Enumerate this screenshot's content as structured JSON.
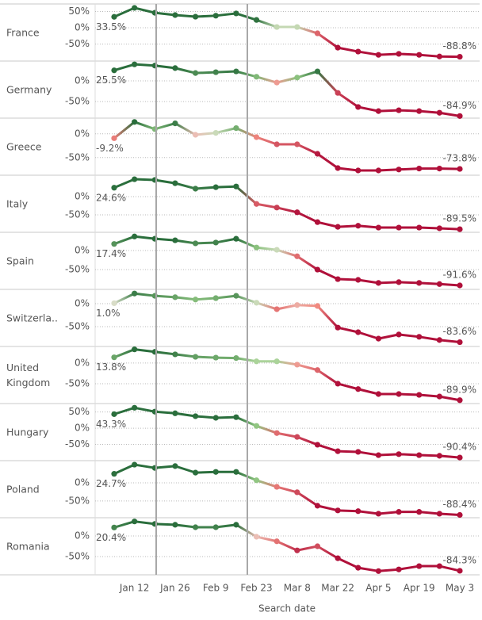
{
  "chart_data": {
    "type": "line",
    "x_label": "Search date",
    "categories": [
      null,
      "Jan 12",
      null,
      "Jan 26",
      null,
      "Feb 9",
      null,
      "Feb 23",
      null,
      "Mar 8",
      null,
      "Mar 22",
      null,
      "Apr 5",
      null,
      "Apr 19",
      null,
      "May 3"
    ],
    "color_scale": {
      "domain": [
        -45,
        -5,
        0,
        5,
        25
      ],
      "range": [
        "#b0103a",
        "#f08a80",
        "#e8e0d8",
        "#9cd08a",
        "#2a6e3c"
      ]
    },
    "panels": [
      {
        "name": "France",
        "values": [
          33.5,
          61,
          46,
          39,
          34,
          37,
          44,
          24,
          2.4,
          2.4,
          -17,
          -61,
          -73,
          -83,
          -80,
          -83,
          -88,
          -88.8
        ],
        "value_labels": [
          "33.5%",
          null,
          null,
          null,
          null,
          null,
          null,
          null,
          null,
          null,
          null,
          null,
          null,
          null,
          null,
          null,
          null,
          "-88.8%"
        ],
        "ylim": [
          -102,
          73
        ],
        "yticks": [
          {
            "value": 50,
            "label": "50%"
          },
          {
            "value": 0,
            "label": "0%"
          },
          {
            "value": -50,
            "label": "-50%"
          }
        ]
      },
      {
        "name": "Germany",
        "values": [
          25.5,
          40,
          37,
          31,
          19,
          21,
          23,
          10,
          -4,
          8,
          23,
          -29,
          -63,
          -73,
          -71,
          -73,
          -77,
          -84.9
        ],
        "value_labels": [
          "25.5%",
          null,
          null,
          null,
          null,
          null,
          null,
          null,
          null,
          null,
          null,
          null,
          null,
          null,
          null,
          null,
          null,
          "-84.9%"
        ],
        "ylim": [
          -90,
          48
        ],
        "yticks": [
          {
            "value": 0,
            "label": "0%"
          },
          {
            "value": -50,
            "label": "-50%"
          }
        ]
      },
      {
        "name": "Greece",
        "values": [
          -9.2,
          25,
          10,
          22,
          -2,
          2,
          12,
          -7,
          -22,
          -22,
          -42,
          -72,
          -77,
          -77,
          -75,
          -73,
          -73,
          -73.8
        ],
        "value_labels": [
          "-9.2%",
          null,
          null,
          null,
          null,
          null,
          null,
          null,
          null,
          null,
          null,
          null,
          null,
          null,
          null,
          null,
          null,
          "-73.8%"
        ],
        "ylim": [
          -87,
          33
        ],
        "yticks": [
          {
            "value": 0,
            "label": "0%"
          },
          {
            "value": -50,
            "label": "-50%"
          }
        ]
      },
      {
        "name": "Italy",
        "values": [
          24.6,
          48,
          46,
          37,
          22,
          26,
          28,
          -20,
          -30,
          -43,
          -70,
          -83,
          -80,
          -85,
          -85,
          -85,
          -87,
          -89.5
        ],
        "value_labels": [
          "24.6%",
          null,
          null,
          null,
          null,
          null,
          null,
          null,
          null,
          null,
          null,
          null,
          null,
          null,
          null,
          null,
          null,
          "-89.5%"
        ],
        "ylim": [
          -98,
          59
        ],
        "yticks": [
          {
            "value": 0,
            "label": "0%"
          },
          {
            "value": -50,
            "label": "-50%"
          }
        ]
      },
      {
        "name": "Spain",
        "values": [
          17.4,
          37,
          31,
          27,
          19,
          21,
          31,
          8,
          2,
          -15,
          -50,
          -75,
          -77,
          -85,
          -83,
          -85,
          -88,
          -91.6
        ],
        "value_labels": [
          "17.4%",
          null,
          null,
          null,
          null,
          null,
          null,
          null,
          null,
          null,
          null,
          null,
          null,
          null,
          null,
          null,
          null,
          "-91.6%"
        ],
        "ylim": [
          -102,
          48
        ],
        "yticks": [
          {
            "value": 0,
            "label": "0%"
          },
          {
            "value": -50,
            "label": "-50%"
          }
        ]
      },
      {
        "name": "Switzerla..",
        "values": [
          1.0,
          22,
          17,
          14,
          9,
          12,
          17,
          2,
          -12,
          -3,
          -5,
          -52,
          -62,
          -76,
          -67,
          -72,
          -79,
          -83.6
        ],
        "value_labels": [
          "1.0%",
          null,
          null,
          null,
          null,
          null,
          null,
          null,
          null,
          null,
          null,
          null,
          null,
          null,
          null,
          null,
          null,
          "-83.6%"
        ],
        "ylim": [
          -93,
          31
        ],
        "yticks": [
          {
            "value": 0,
            "label": "0%"
          },
          {
            "value": -50,
            "label": "-50%"
          }
        ]
      },
      {
        "name": "United Kingdom",
        "values": [
          13.8,
          33,
          27,
          21,
          15,
          13,
          12,
          4,
          4,
          -4,
          -17,
          -50,
          -63,
          -75,
          -75,
          -77,
          -81,
          -89.9
        ],
        "value_labels": [
          "13.8%",
          null,
          null,
          null,
          null,
          null,
          null,
          null,
          null,
          null,
          null,
          null,
          null,
          null,
          null,
          null,
          null,
          "-89.9%"
        ],
        "ylim": [
          -98,
          40
        ],
        "yticks": [
          {
            "value": 0,
            "label": "0%"
          },
          {
            "value": -50,
            "label": "-50%"
          }
        ]
      },
      {
        "name": "Hungary",
        "values": [
          43.3,
          63,
          51,
          46,
          37,
          32,
          34,
          7,
          -15,
          -27,
          -51,
          -71,
          -73,
          -83,
          -80,
          -83,
          -85,
          -90.4
        ],
        "value_labels": [
          "43.3%",
          null,
          null,
          null,
          null,
          null,
          null,
          null,
          null,
          null,
          null,
          null,
          null,
          null,
          null,
          null,
          null,
          "-90.4%"
        ],
        "ylim": [
          -100,
          76
        ],
        "yticks": [
          {
            "value": 50,
            "label": "50%"
          },
          {
            "value": 0,
            "label": "0%"
          },
          {
            "value": -50,
            "label": "-50%"
          }
        ]
      },
      {
        "name": "Poland",
        "values": [
          24.7,
          50,
          41,
          46,
          28,
          30,
          30,
          7,
          -11,
          -26,
          -63,
          -76,
          -78,
          -85,
          -80,
          -80,
          -85,
          -88.4
        ],
        "value_labels": [
          "24.7%",
          null,
          null,
          null,
          null,
          null,
          null,
          null,
          null,
          null,
          null,
          null,
          null,
          null,
          null,
          null,
          null,
          "-88.4%"
        ],
        "ylim": [
          -96,
          61
        ],
        "yticks": [
          {
            "value": 0,
            "label": "0%"
          },
          {
            "value": -50,
            "label": "-50%"
          }
        ]
      },
      {
        "name": "Romania",
        "values": [
          20.4,
          35,
          29,
          27,
          21,
          21,
          27,
          -2,
          -13,
          -35,
          -25,
          -54,
          -77,
          -85,
          -81,
          -73,
          -73,
          -84.3
        ],
        "value_labels": [
          "20.4%",
          null,
          null,
          null,
          null,
          null,
          null,
          null,
          null,
          null,
          null,
          null,
          null,
          null,
          null,
          null,
          null,
          "-84.3%"
        ],
        "ylim": [
          -94,
          44
        ],
        "yticks": [
          {
            "value": 0,
            "label": "0%"
          },
          {
            "value": -50,
            "label": "-50%"
          }
        ]
      }
    ]
  }
}
